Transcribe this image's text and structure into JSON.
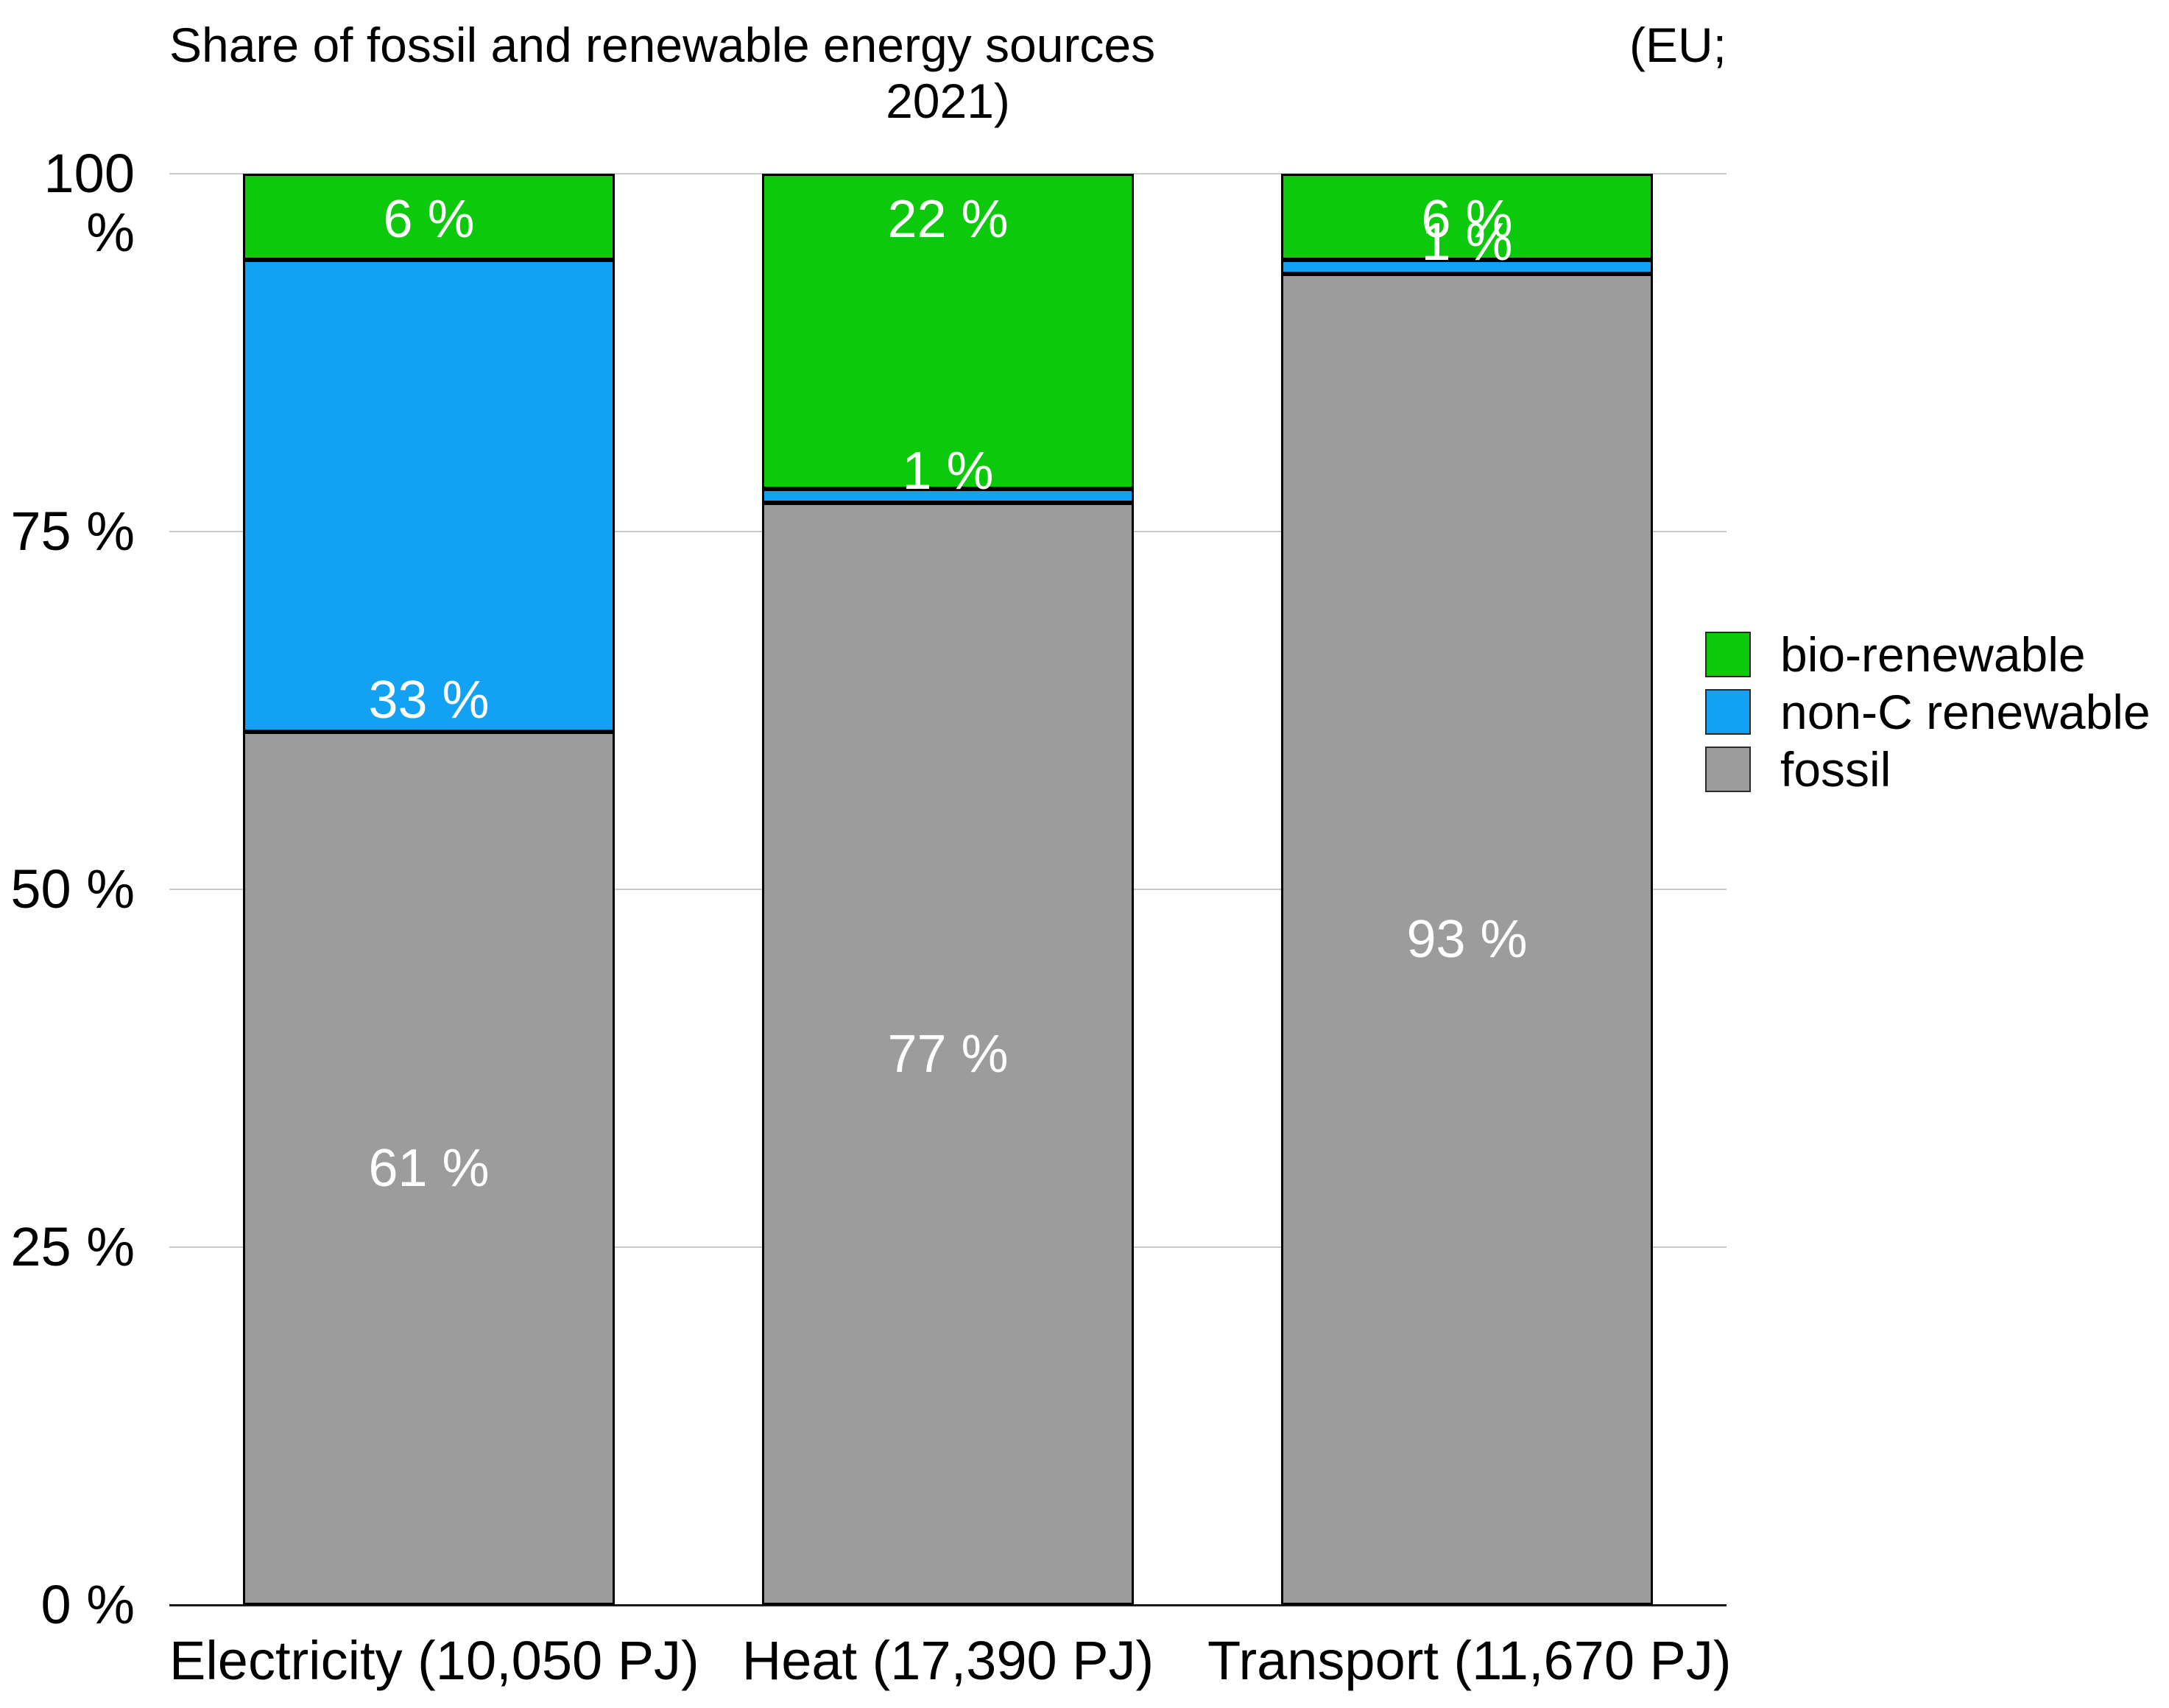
{
  "title": {
    "full": "Share of fossil and renewable energy sources (EU; 2021)",
    "line1_left": "Share of fossil and renewable energy sources",
    "line1_right": "(EU;",
    "line2": "2021)"
  },
  "chart_data": {
    "type": "bar",
    "stacked": true,
    "title": "Share of fossil and renewable energy sources (EU; 2021)",
    "categories": [
      "Electricity (10,050 PJ)",
      "Heat (17,390 PJ)",
      "Transport (11,670 PJ)"
    ],
    "series": [
      {
        "name": "bio-renewable",
        "color": "#0cc90c",
        "values": [
          6,
          22,
          6
        ],
        "label_align": "top"
      },
      {
        "name": "non-C renewable",
        "color": "#12a1f3",
        "values": [
          33,
          1,
          1
        ],
        "label_align": "bottom"
      },
      {
        "name": "fossil",
        "color": "#9c9c9c",
        "values": [
          61,
          77,
          93
        ],
        "label_align": "center"
      }
    ],
    "value_label_suffix": " %",
    "y_ticks": [
      {
        "value": 100,
        "label": "100 %"
      },
      {
        "value": 75,
        "label": "75 %"
      },
      {
        "value": 50,
        "label": "50 %"
      },
      {
        "value": 25,
        "label": "25 %"
      },
      {
        "value": 0,
        "label": "0 %"
      }
    ],
    "ylim": [
      0,
      100
    ],
    "grid": true,
    "legend": {
      "position": "right",
      "entries": [
        "bio-renewable",
        "non-C renewable",
        "fossil"
      ]
    }
  },
  "colors": {
    "background": "#ffffff",
    "grid": "#c9c9c9",
    "axis_baseline": "#1a1a1a",
    "bar_border": "#000000",
    "value_label_text": "#ffffff",
    "text": "#000000"
  }
}
